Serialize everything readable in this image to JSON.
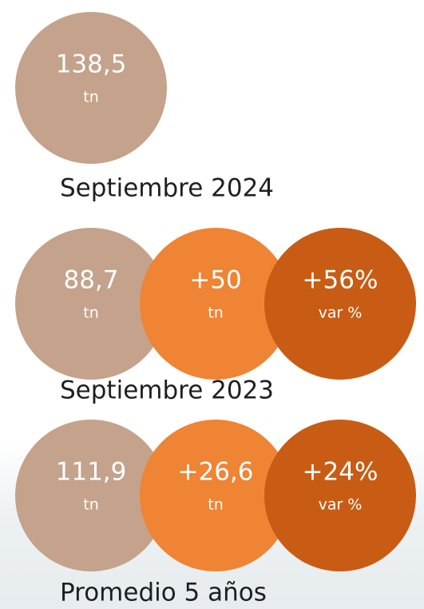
{
  "groups": [
    {
      "circles": [
        {
          "value": "138,5",
          "unit": "tn",
          "color": "#c4a28b"
        }
      ],
      "caption": "Septiembre 2024"
    },
    {
      "circles": [
        {
          "value": "88,7",
          "unit": "tn",
          "color": "#c4a28b"
        },
        {
          "value": "+50",
          "unit": "tn",
          "color": "#ee8434"
        },
        {
          "value": "+56%",
          "unit": "var %",
          "color": "#c85c14"
        }
      ],
      "caption": "Septiembre 2023"
    },
    {
      "circles": [
        {
          "value": "111,9",
          "unit": "tn",
          "color": "#c4a28b"
        },
        {
          "value": "+26,6",
          "unit": "tn",
          "color": "#ee8434"
        },
        {
          "value": "+24%",
          "unit": "var %",
          "color": "#c85c14"
        }
      ],
      "caption": "Promedio 5 años"
    }
  ]
}
